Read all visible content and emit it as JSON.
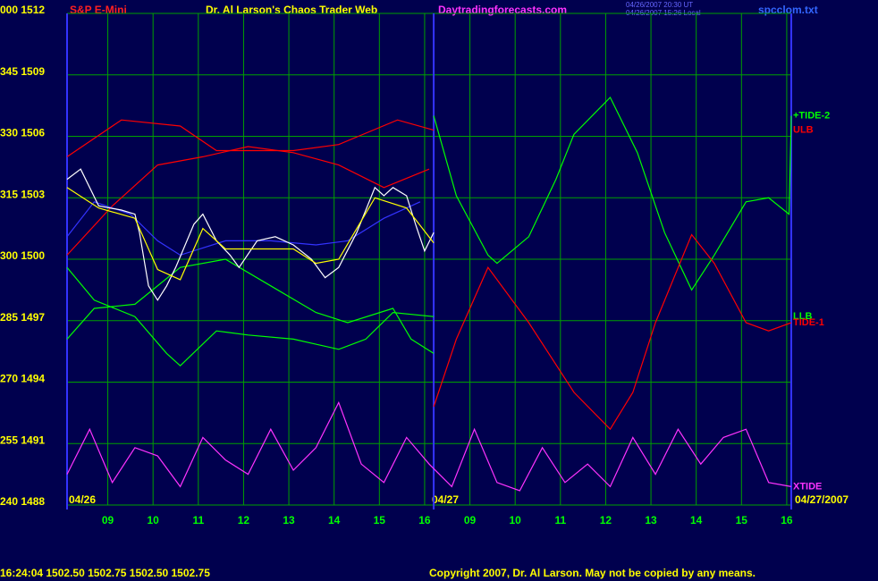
{
  "chart_data": {
    "type": "line",
    "title": "Dr. Al Larson's Chaos Trader Web",
    "symbol": "S&P E-Mini",
    "site": "Daytradingforecasts.com",
    "stamp_ut": "04/26/2007 20:30 UT",
    "stamp_local": "04/26/2007 15:26 Local",
    "file": "spcclom.txt",
    "quote": "16:24:04  1502.50 1502.75 1502.50 1502.75",
    "copyright": "Copyright 2007, Dr. Al Larson. May not be copied by any means.",
    "date_start": "04/26",
    "date_break": "04/27",
    "date_end": "04/27/2007",
    "day_break": 8.1,
    "xlim": [
      0,
      16
    ],
    "xticks": [
      {
        "value": 0.9,
        "label": "09"
      },
      {
        "value": 1.9,
        "label": "10"
      },
      {
        "value": 2.9,
        "label": "11"
      },
      {
        "value": 3.9,
        "label": "12"
      },
      {
        "value": 4.9,
        "label": "13"
      },
      {
        "value": 5.9,
        "label": "14"
      },
      {
        "value": 6.9,
        "label": "15"
      },
      {
        "value": 7.9,
        "label": "16"
      },
      {
        "value": 8.9,
        "label": "09"
      },
      {
        "value": 9.9,
        "label": "10"
      },
      {
        "value": 10.9,
        "label": "11"
      },
      {
        "value": 11.9,
        "label": "12"
      },
      {
        "value": 12.9,
        "label": "13"
      },
      {
        "value": 13.9,
        "label": "14"
      },
      {
        "value": 14.9,
        "label": "15"
      },
      {
        "value": 15.9,
        "label": "16"
      }
    ],
    "ylim": [
      1488,
      1512
    ],
    "yticks": [
      {
        "value": 1488,
        "label": "240 1488"
      },
      {
        "value": 1491,
        "label": "255 1491"
      },
      {
        "value": 1494,
        "label": "270 1494"
      },
      {
        "value": 1497,
        "label": "285 1497"
      },
      {
        "value": 1500,
        "label": "300 1500"
      },
      {
        "value": 1503,
        "label": "315 1503"
      },
      {
        "value": 1506,
        "label": "330 1506"
      },
      {
        "value": 1509,
        "label": "345 1509"
      },
      {
        "value": 1512,
        "label": "000 1512"
      }
    ],
    "grid": true,
    "series": [
      {
        "color": "#ff0000",
        "x": [
          0,
          1,
          2,
          3,
          4,
          5,
          6,
          7,
          8
        ],
        "values": [
          1500.2,
          1502.6,
          1504.6,
          1505.0,
          1505.5,
          1505.2,
          1504.6,
          1503.5,
          1504.4
        ]
      },
      {
        "name": "ULB",
        "color": "#ff0000",
        "x": [
          0,
          1.2,
          2.5,
          3.3,
          5,
          6,
          7.3,
          8.1
        ],
        "values": [
          1505.0,
          1506.8,
          1506.5,
          1505.3,
          1505.3,
          1505.6,
          1506.8,
          1506.3
        ]
      },
      {
        "color": "#00ff00",
        "x": [
          0,
          0.6,
          1.5,
          2.5,
          3.5,
          4.5,
          5.5,
          6.2,
          7.2,
          7.6,
          8.1
        ],
        "values": [
          1496.1,
          1497.6,
          1497.8,
          1499.6,
          1500.0,
          1498.7,
          1497.4,
          1496.9,
          1497.6,
          1496.1,
          1495.4
        ]
      },
      {
        "name": "LLB",
        "color": "#00ff00",
        "x": [
          0,
          0.6,
          1.5,
          2.2,
          2.5,
          3.3,
          4,
          5,
          6,
          6.6,
          7.2,
          8.1
        ],
        "values": [
          1499.6,
          1498.0,
          1497.2,
          1495.4,
          1494.8,
          1496.5,
          1496.3,
          1496.1,
          1495.6,
          1496.1,
          1497.4,
          1497.2
        ]
      },
      {
        "color": "#3333ff",
        "x": [
          0,
          0.6,
          1.4,
          2,
          2.5,
          3.5,
          4.5,
          5.5,
          6.2,
          7,
          7.8
        ],
        "values": [
          1501.1,
          1502.8,
          1502.2,
          1500.9,
          1500.2,
          1500.9,
          1500.9,
          1500.7,
          1500.9,
          1502.0,
          1502.8
        ]
      },
      {
        "color": "#ffffff",
        "x": [
          0,
          0.3,
          0.7,
          1.2,
          1.5,
          1.6,
          1.8,
          2.0,
          2.2,
          2.4,
          2.8,
          3.0,
          3.3,
          3.6,
          3.8,
          4.2,
          4.6,
          5.0,
          5.4,
          5.7,
          6.0,
          6.4,
          6.8,
          7.0,
          7.2,
          7.5,
          7.7,
          7.9,
          8.1
        ],
        "values": [
          1503.9,
          1504.4,
          1502.6,
          1502.4,
          1502.2,
          1501.3,
          1498.7,
          1498.0,
          1498.7,
          1499.6,
          1501.7,
          1502.2,
          1500.9,
          1500.2,
          1499.6,
          1500.9,
          1501.1,
          1500.7,
          1500.0,
          1499.1,
          1499.6,
          1501.3,
          1503.5,
          1503.1,
          1503.5,
          1503.1,
          1501.7,
          1500.4,
          1501.3
        ]
      },
      {
        "color": "#ffff00",
        "x": [
          0,
          0.7,
          1.5,
          2,
          2.5,
          3,
          3.5,
          4,
          5,
          5.5,
          6,
          6.8,
          7.5,
          8.1
        ],
        "values": [
          1503.5,
          1502.5,
          1502.0,
          1499.5,
          1499.0,
          1501.5,
          1500.5,
          1500.5,
          1500.5,
          1499.8,
          1500.0,
          1503.0,
          1502.5,
          1500.8
        ]
      },
      {
        "name": "+TIDE-2",
        "color": "#00ff00",
        "x": [
          8.1,
          8.6,
          9.3,
          9.5,
          10.2,
          10.8,
          11.2,
          12,
          12.6,
          13.2,
          13.8,
          14.3,
          15,
          15.5,
          15.95,
          16
        ],
        "values": [
          1507.0,
          1503.1,
          1500.2,
          1499.8,
          1501.1,
          1503.9,
          1506.1,
          1507.9,
          1505.2,
          1501.3,
          1498.5,
          1500.2,
          1502.8,
          1503.0,
          1502.2,
          1507.0
        ]
      },
      {
        "name": "TIDE-1",
        "color": "#ff0000",
        "x": [
          8.1,
          8.6,
          9.3,
          10.2,
          11.2,
          12,
          12.5,
          13,
          13.8,
          14.3,
          15,
          15.5,
          16
        ],
        "values": [
          1492.8,
          1496.1,
          1499.6,
          1496.9,
          1493.5,
          1491.7,
          1493.5,
          1496.9,
          1501.2,
          1499.8,
          1496.9,
          1496.5,
          1496.9
        ]
      },
      {
        "name": "XTIDE",
        "color": "#ff33ff",
        "x": [
          0,
          0.5,
          1,
          1.5,
          2,
          2.5,
          3,
          3.5,
          4,
          4.5,
          5,
          5.5,
          6,
          6.5,
          7,
          7.5,
          8,
          8.5,
          9,
          9.5,
          10,
          10.5,
          11,
          11.5,
          12,
          12.5,
          13,
          13.5,
          14,
          14.5,
          15,
          15.5,
          16
        ],
        "values": [
          1489.5,
          1491.7,
          1489.1,
          1490.8,
          1490.4,
          1488.9,
          1491.3,
          1490.2,
          1489.5,
          1491.7,
          1489.7,
          1490.8,
          1493.0,
          1490.0,
          1489.1,
          1491.3,
          1490.0,
          1488.9,
          1491.7,
          1489.1,
          1488.7,
          1490.8,
          1489.1,
          1490.0,
          1488.9,
          1491.3,
          1489.5,
          1491.7,
          1490.0,
          1491.3,
          1491.7,
          1489.1,
          1488.9
        ]
      }
    ]
  }
}
